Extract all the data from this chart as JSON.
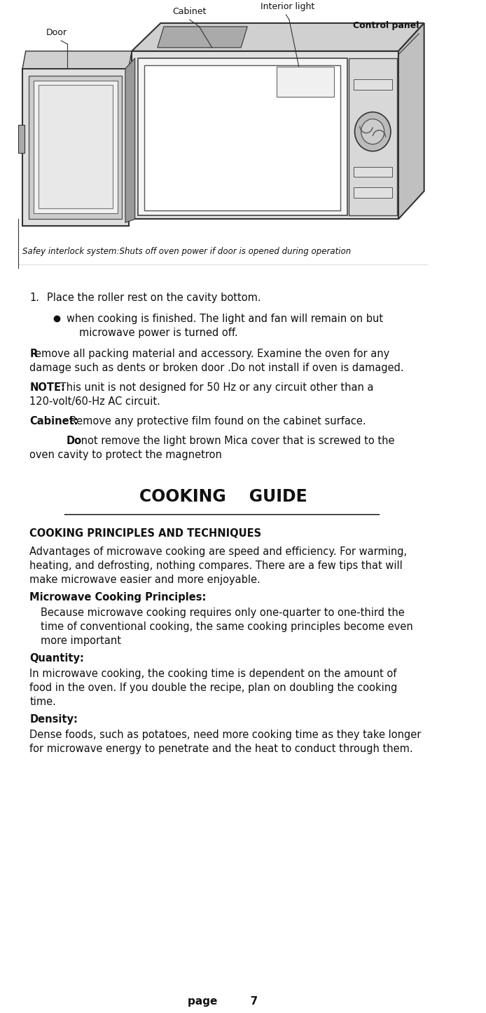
{
  "page_number": "7",
  "bg_color": "#ffffff",
  "text_color": "#000000",
  "fig_width": 6.94,
  "fig_height": 14.44,
  "diagram_labels": {
    "door": "Door",
    "cabinet": "Cabinet",
    "interior_light": "Interior light",
    "control_panel": "Control panel"
  },
  "caption": "Safey interlock system:Shuts off oven power if door is opened during operation",
  "body_text": [
    {
      "type": "numbered",
      "number": "1.",
      "text": "Place the roller rest on the cavity bottom."
    },
    {
      "type": "bullet",
      "text": "when cooking is finished. The light and fan will remain on but microwave power is turned off."
    },
    {
      "type": "bold_start",
      "bold": "R",
      "text": "emove all packing material and accessory. Examine the oven for any damage such as dents or broken door .Do not install if oven is damaged."
    },
    {
      "type": "bold_label",
      "bold": "NOTE:",
      "text": " This unit is not designed for 50 Hz or any circuit other than a 120-volt/60-Hz AC circuit."
    },
    {
      "type": "bold_label",
      "bold": "Cabinet:",
      "text": " Remove any protective film found on the cabinet surface."
    },
    {
      "type": "bold_indent",
      "bold": "Do",
      "text": " not remove the light brown Mica cover that is screwed to the oven cavity to protect the magnetron"
    }
  ],
  "section_title": "COOKING    GUIDE",
  "section_subtitle": "COOKING PRINCIPLES AND TECHNIQUES",
  "section_body": [
    {
      "type": "paragraph",
      "text": "Advantages of microwave cooking are speed and efficiency. For warming, heating, and defrosting, nothing compares. There are a few tips that will make microwave easier and more enjoyable."
    },
    {
      "type": "bold_label",
      "bold": "Microwave Cooking Principles:",
      "text": ""
    },
    {
      "type": "indent_paragraph",
      "text": "Because microwave cooking requires only one-quarter to one-third the time of conventional cooking, the same cooking principles become even more important"
    },
    {
      "type": "bold_label",
      "bold": "Quantity:",
      "text": ""
    },
    {
      "type": "indent_paragraph",
      "text": "In microwave cooking, the cooking time is dependent on the amount of food in the oven. If you double the recipe, plan on doubling the cooking time."
    },
    {
      "type": "bold_label",
      "bold": "Density:",
      "text": ""
    },
    {
      "type": "indent_paragraph",
      "text": "Dense foods, such as potatoes, need more cooking time as they take longer for microwave energy to penetrate and the heat to conduct through them."
    }
  ],
  "page_footer": "page         7"
}
